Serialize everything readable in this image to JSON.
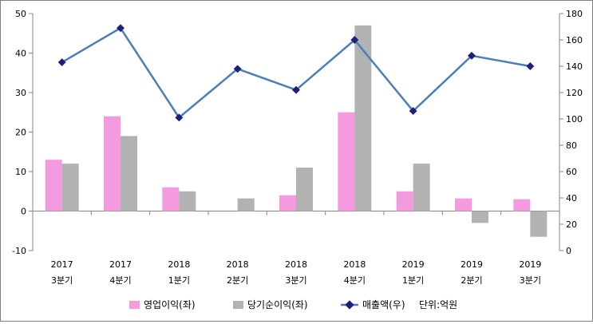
{
  "chart_data": {
    "type": "bar",
    "categories": [
      {
        "year": "2017",
        "quarter": "3분기"
      },
      {
        "year": "2017",
        "quarter": "4분기"
      },
      {
        "year": "2018",
        "quarter": "1분기"
      },
      {
        "year": "2018",
        "quarter": "2분기"
      },
      {
        "year": "2018",
        "quarter": "3분기"
      },
      {
        "year": "2018",
        "quarter": "4분기"
      },
      {
        "year": "2019",
        "quarter": "1분기"
      },
      {
        "year": "2019",
        "quarter": "2분기"
      },
      {
        "year": "2019",
        "quarter": "3분기"
      }
    ],
    "series": [
      {
        "name": "영업이익(좌)",
        "type": "bar",
        "axis": "left",
        "color": "#f49be0",
        "values": [
          13,
          24,
          6,
          0,
          4,
          25,
          5,
          3.2,
          3
        ]
      },
      {
        "name": "당기순이익(좌)",
        "type": "bar",
        "axis": "left",
        "color": "#b2b2b2",
        "values": [
          12,
          19,
          5,
          3.2,
          11,
          47,
          12,
          -3,
          -6.5
        ]
      },
      {
        "name": "매출액(우)",
        "type": "line",
        "axis": "right",
        "color": "#4a7ebb",
        "marker_color": "#1f1f7a",
        "values": [
          143,
          169,
          101,
          138,
          122,
          160,
          106,
          148,
          140
        ]
      }
    ],
    "y_left": {
      "min": -10,
      "max": 50,
      "ticks": [
        -10,
        0,
        10,
        20,
        30,
        40,
        50
      ]
    },
    "y_right": {
      "min": 0,
      "max": 180,
      "ticks": [
        0,
        20,
        40,
        60,
        80,
        100,
        120,
        140,
        160,
        180
      ]
    },
    "unit_note": "단위:억원",
    "legend_position": "bottom",
    "grid": false
  }
}
